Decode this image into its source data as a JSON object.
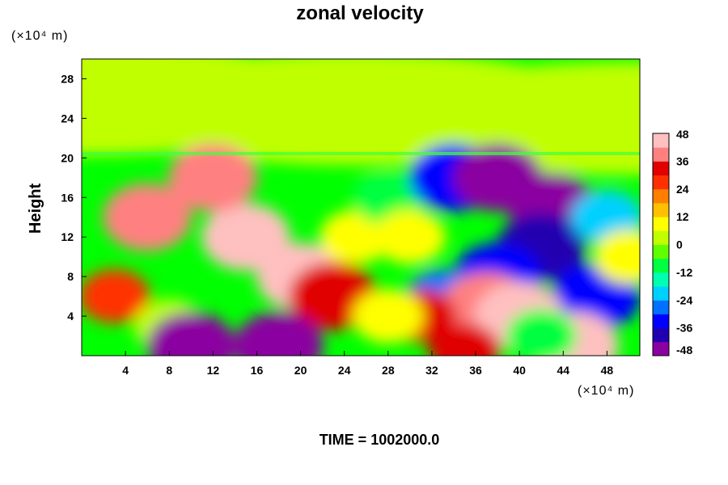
{
  "chart_data": {
    "type": "heatmap",
    "title": "zonal velocity",
    "ylabel": "Height",
    "y_unit": "(×10⁴ m)",
    "x_unit": "(×10⁴ m)",
    "x_ticks": [
      4,
      8,
      12,
      16,
      20,
      24,
      28,
      32,
      36,
      40,
      44,
      48
    ],
    "y_ticks": [
      4,
      8,
      12,
      16,
      20,
      24,
      28
    ],
    "xlim": [
      0,
      51
    ],
    "ylim": [
      0,
      30
    ],
    "colorbar": {
      "ticks": [
        48,
        36,
        24,
        12,
        0,
        -12,
        -24,
        -36,
        -48
      ],
      "range": [
        -48,
        48
      ],
      "colors": [
        "#8b00a0",
        "#2000b0",
        "#0000ff",
        "#0070ff",
        "#00d0ff",
        "#00ffb0",
        "#00ff40",
        "#60ff00",
        "#c0ff00",
        "#ffff00",
        "#ffc000",
        "#ff8000",
        "#ff3000",
        "#e00000",
        "#ff8080",
        "#ffc0c0"
      ]
    },
    "features": [
      {
        "x": 0,
        "y": 26,
        "value": 0
      },
      {
        "x": 25,
        "y": 25,
        "value": 0
      },
      {
        "x": 50,
        "y": 24,
        "value": 0
      },
      {
        "x": 15,
        "y": 12,
        "value": 46
      },
      {
        "x": 12,
        "y": 18,
        "value": 40
      },
      {
        "x": 6,
        "y": 14,
        "value": 36
      },
      {
        "x": 20,
        "y": 8,
        "value": 42
      },
      {
        "x": 23,
        "y": 6,
        "value": 34
      },
      {
        "x": 3,
        "y": 6,
        "value": 28
      },
      {
        "x": 8,
        "y": 3,
        "value": 2
      },
      {
        "x": 10,
        "y": 1,
        "value": -46
      },
      {
        "x": 18,
        "y": 1,
        "value": -44
      },
      {
        "x": 25,
        "y": 12,
        "value": 10
      },
      {
        "x": 28,
        "y": 16,
        "value": -12
      },
      {
        "x": 30,
        "y": 12,
        "value": 6
      },
      {
        "x": 34,
        "y": 18,
        "value": -32
      },
      {
        "x": 38,
        "y": 18,
        "value": -44
      },
      {
        "x": 43,
        "y": 15,
        "value": -46
      },
      {
        "x": 42,
        "y": 11,
        "value": -40
      },
      {
        "x": 38,
        "y": 8,
        "value": -36
      },
      {
        "x": 33,
        "y": 6,
        "value": -30
      },
      {
        "x": 47,
        "y": 6,
        "value": -34
      },
      {
        "x": 48,
        "y": 14,
        "value": -22
      },
      {
        "x": 37,
        "y": 5,
        "value": 38
      },
      {
        "x": 40,
        "y": 4,
        "value": 44
      },
      {
        "x": 45,
        "y": 1,
        "value": 42
      },
      {
        "x": 31,
        "y": 4,
        "value": 30
      },
      {
        "x": 35,
        "y": 0.5,
        "value": 30
      },
      {
        "x": 28,
        "y": 4,
        "value": 8
      },
      {
        "x": 42,
        "y": 2,
        "value": -12
      },
      {
        "x": 50,
        "y": 10,
        "value": 6
      }
    ]
  },
  "footer": {
    "time_label": "TIME = 1002000.0"
  }
}
